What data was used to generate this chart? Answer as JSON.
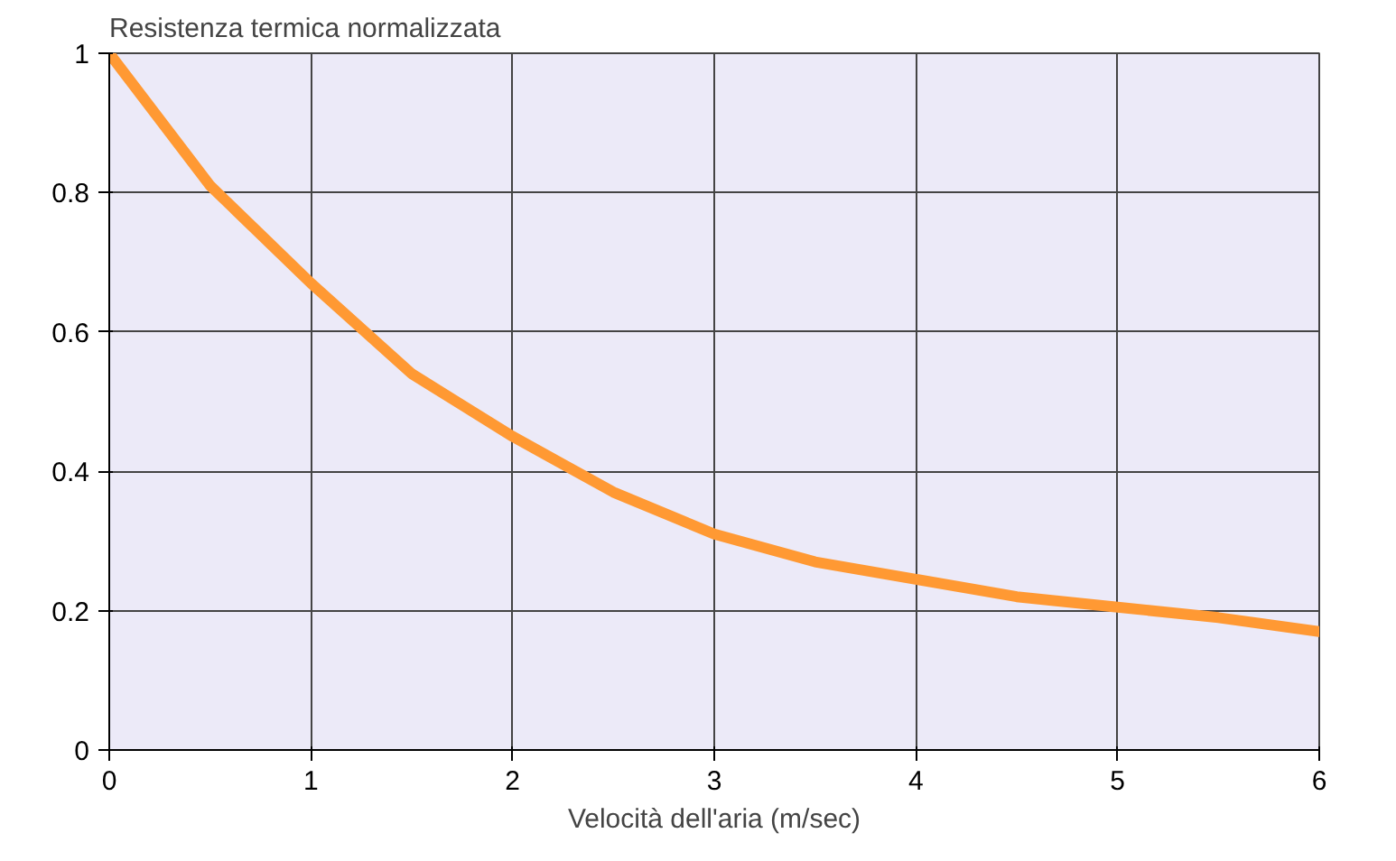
{
  "chart_data": {
    "type": "line",
    "ylabel": "Resistenza termica normalizzata",
    "xlabel": "Velocità dell'aria (m/sec)",
    "x": [
      0,
      0.5,
      1,
      1.5,
      2,
      2.5,
      3,
      3.5,
      4,
      4.5,
      5,
      5.5,
      6
    ],
    "series": [
      {
        "color": "#ff9933",
        "values": [
          1,
          0.81,
          0.67,
          0.54,
          0.45,
          0.37,
          0.31,
          0.27,
          0.245,
          0.22,
          0.205,
          0.19,
          0.17
        ]
      }
    ],
    "xlim": [
      0,
      6
    ],
    "ylim": [
      0,
      1
    ],
    "xticks": [
      0,
      1,
      2,
      3,
      4,
      5,
      6
    ],
    "yticks": [
      0,
      0.2,
      0.4,
      0.6,
      0.8,
      1
    ],
    "grid": true,
    "marker": "none",
    "line_style": "solid"
  }
}
